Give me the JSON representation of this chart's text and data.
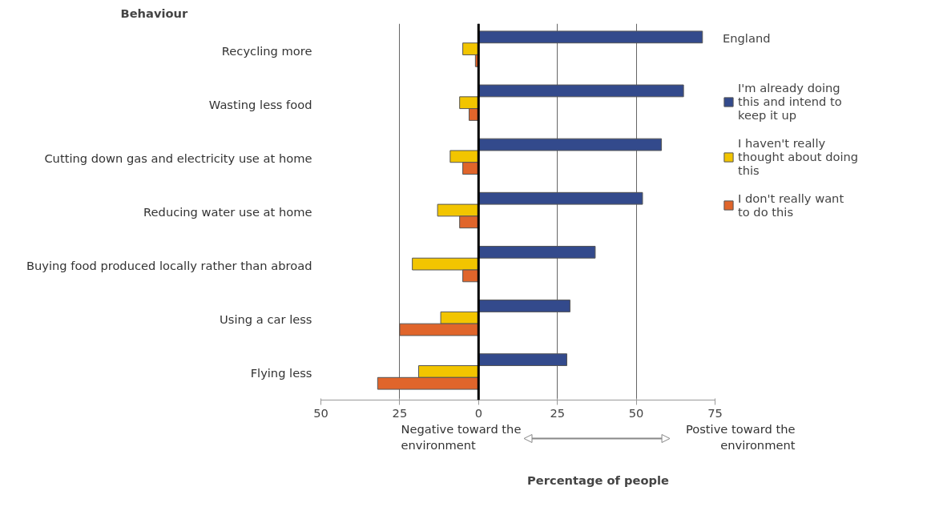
{
  "chart_data": {
    "type": "bar",
    "orientation": "horizontal",
    "xlabel": "Percentage of people",
    "legend_title": "England",
    "legend": "right",
    "categories": [
      "Recycling more",
      "Wasting less food",
      "Cutting down gas and electricity use at home",
      "Reducing water use at home",
      "Buying food produced locally rather than abroad",
      "Using a car less",
      "Flying less"
    ],
    "series": [
      {
        "name": "I'm already doing this and intend to keep it up",
        "color": "#334a8c",
        "values": [
          71,
          65,
          58,
          52,
          37,
          29,
          28
        ]
      },
      {
        "name": "I haven't really thought about doing this",
        "color": "#f2c500",
        "values": [
          -5,
          -6,
          -9,
          -13,
          -21,
          -12,
          -19
        ]
      },
      {
        "name": "I don't really want to do this",
        "color": "#e0652b",
        "values": [
          -1,
          -3,
          -5,
          -6,
          -5,
          -25,
          -32
        ]
      }
    ],
    "xlim": [
      -50,
      75
    ],
    "xticks": [
      {
        "value": -50,
        "label": "50"
      },
      {
        "value": -25,
        "label": "25"
      },
      0,
      25,
      50,
      75
    ],
    "grid": "x",
    "annotations": [
      "Behaviour",
      "Negative toward the environment",
      "Postive toward the environment"
    ]
  }
}
